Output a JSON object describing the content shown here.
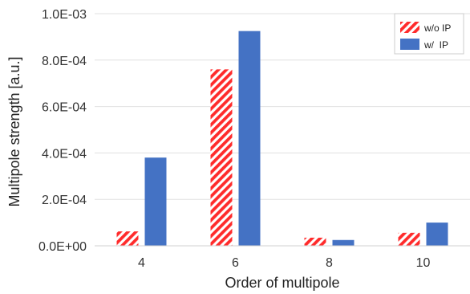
{
  "chart_data": {
    "type": "bar",
    "title": "",
    "xlabel": "Order of multipole",
    "ylabel": "Multipole strength [a.u.]",
    "categories": [
      "4",
      "6",
      "8",
      "10"
    ],
    "ylim": [
      0,
      0.001
    ],
    "yticks": [
      0,
      0.0002,
      0.0004,
      0.0006,
      0.0008,
      0.001
    ],
    "ytick_labels": [
      "0.0E+00",
      "2.0E-04",
      "4.0E-04",
      "6.0E-04",
      "8.0E-04",
      "1.0E-03"
    ],
    "grid": "horizontal",
    "legend_position": "top-right",
    "series": [
      {
        "name": "w/o IP",
        "values": [
          6.2e-05,
          0.00076,
          3.5e-05,
          5.6e-05
        ],
        "color": "#ff2b2b",
        "pattern": "diagonal-stripes"
      },
      {
        "name": "w/  IP",
        "values": [
          0.00038,
          0.000925,
          2.5e-05,
          0.0001
        ],
        "color": "#4472c4",
        "pattern": "solid"
      }
    ]
  }
}
